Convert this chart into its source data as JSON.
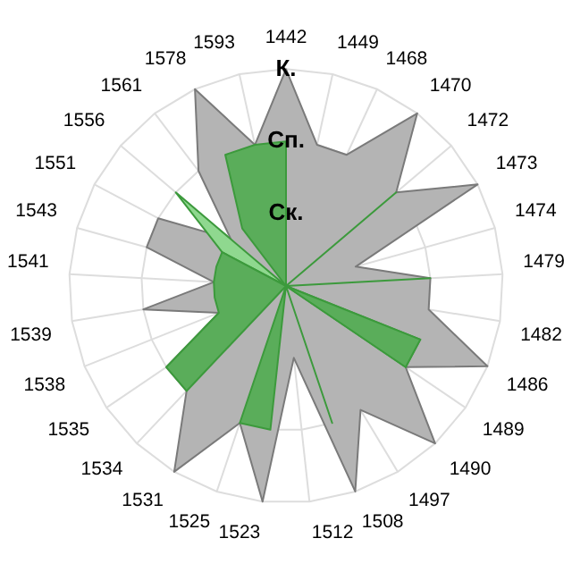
{
  "chart_data": {
    "type": "radar",
    "categories": [
      "1442",
      "1449",
      "1468",
      "1470",
      "1472",
      "1473",
      "1474",
      "1479",
      "1482",
      "1486",
      "1489",
      "1490",
      "1497",
      "1508",
      "1512",
      "1523",
      "1525",
      "1531",
      "1534",
      "1535",
      "1538",
      "1539",
      "1541",
      "1543",
      "1551",
      "1556",
      "1561",
      "1578",
      "1593"
    ],
    "series": [
      {
        "color": "#b4b4b4",
        "values": [
          3,
          2,
          2,
          3,
          2,
          3,
          1,
          2,
          2,
          3,
          2,
          3,
          2,
          3,
          1,
          3,
          2,
          3,
          2,
          2,
          1,
          2,
          1,
          2,
          2,
          1,
          2,
          3,
          2
        ]
      },
      {
        "color": "#8fd88f",
        "values": [
          0,
          0,
          0,
          0,
          0,
          0,
          0,
          0,
          0,
          2,
          2,
          0,
          0,
          0,
          0,
          0,
          0,
          0,
          0,
          0,
          0,
          0,
          0,
          0,
          1,
          2,
          0,
          0,
          0
        ]
      },
      {
        "color": "#5aad5a",
        "values": [
          2,
          0,
          0,
          0,
          2,
          0,
          0,
          2,
          0,
          2,
          2,
          0,
          0,
          2,
          0,
          2,
          2,
          0,
          2,
          2,
          1,
          1,
          1,
          1,
          1,
          0,
          1,
          2,
          2
        ]
      }
    ],
    "ylim": [
      0,
      3
    ],
    "yticks": [
      {
        "value": 1,
        "label": "Ск."
      },
      {
        "value": 2,
        "label": "Сп."
      },
      {
        "value": 3,
        "label": "К."
      }
    ],
    "grid": true,
    "legend": false,
    "marker": "none"
  }
}
